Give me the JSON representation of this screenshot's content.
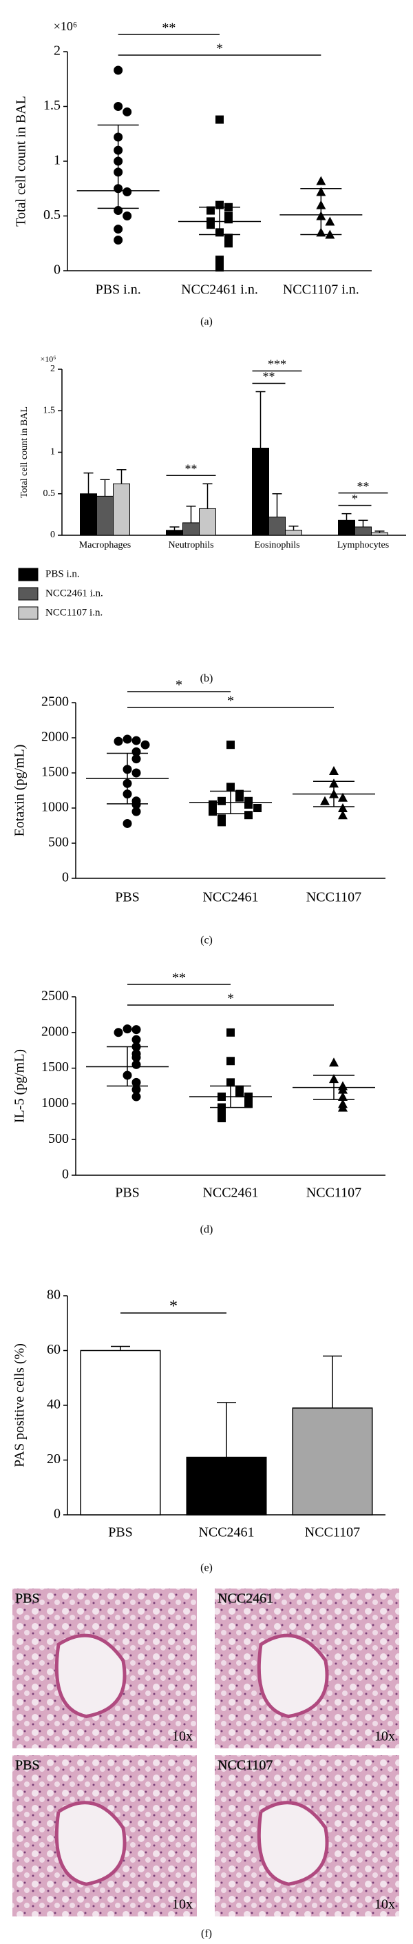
{
  "chart_data": [
    {
      "type": "dotplot",
      "caption": "(a)",
      "ylabel": "Total cell count in BAL",
      "y_multiplier": "×10⁶",
      "color": "#000000",
      "categories": [
        "PBS i.n.",
        "NCC2461 i.n.",
        "NCC1107 i.n."
      ],
      "ylim": [
        0,
        2
      ],
      "yticks": [
        0,
        0.5,
        1,
        1.5,
        2
      ],
      "groups": [
        {
          "marker": "circle",
          "values": [
            1.83,
            1.5,
            1.45,
            1.22,
            1.1,
            1.0,
            0.9,
            0.75,
            0.72,
            0.55,
            0.5,
            0.38,
            0.28
          ],
          "center": 0.73,
          "range": [
            0.57,
            1.33
          ]
        },
        {
          "marker": "square",
          "values": [
            1.38,
            0.6,
            0.58,
            0.55,
            0.5,
            0.47,
            0.45,
            0.42,
            0.35,
            0.3,
            0.25,
            0.1,
            0.03
          ],
          "center": 0.45,
          "range": [
            0.33,
            0.58
          ]
        },
        {
          "marker": "triangle",
          "values": [
            0.82,
            0.72,
            0.6,
            0.5,
            0.45,
            0.35,
            0.33
          ],
          "center": 0.51,
          "range": [
            0.33,
            0.75
          ]
        }
      ],
      "annotations": [
        {
          "label": "**",
          "from": 0,
          "to": 1
        },
        {
          "label": "*",
          "from": 0,
          "to": 2
        }
      ]
    },
    {
      "type": "bar",
      "caption": "(b)",
      "ylabel": "Total cell count in BAL",
      "y_multiplier": "×10⁶",
      "legend": "bottom-left",
      "categories": [
        "Macrophages",
        "Neutrophils",
        "Eosinophils",
        "Lymphocytes"
      ],
      "ylim": [
        0,
        2
      ],
      "yticks": [
        0,
        0.5,
        1,
        1.5,
        2
      ],
      "series": [
        {
          "name": "PBS i.n.",
          "color": "#000000",
          "values": [
            0.5,
            0.06,
            1.05,
            0.18
          ],
          "errors": [
            0.25,
            0.04,
            0.68,
            0.08
          ]
        },
        {
          "name": "NCC2461 i.n.",
          "color": "#595959",
          "values": [
            0.47,
            0.15,
            0.22,
            0.1
          ],
          "errors": [
            0.2,
            0.2,
            0.28,
            0.08
          ]
        },
        {
          "name": "NCC1107 i.n.",
          "color": "#c8c8c8",
          "values": [
            0.62,
            0.32,
            0.06,
            0.03
          ],
          "errors": [
            0.17,
            0.3,
            0.05,
            0.02
          ]
        }
      ],
      "annotations": [
        {
          "label": "**",
          "category": 1,
          "from": 0,
          "to": 2
        },
        {
          "label": "**",
          "category": 2,
          "from": 0,
          "to": 1
        },
        {
          "label": "***",
          "category": 2,
          "from": 0,
          "to": 2
        },
        {
          "label": "*",
          "category": 3,
          "from": 0,
          "to": 1
        },
        {
          "label": "**",
          "category": 3,
          "from": 0,
          "to": 2
        }
      ]
    },
    {
      "type": "dotplot",
      "caption": "(c)",
      "ylabel": "Eotaxin (pg/mL)",
      "color": "#000000",
      "categories": [
        "PBS",
        "NCC2461",
        "NCC1107"
      ],
      "ylim": [
        0,
        2500
      ],
      "yticks": [
        0,
        500,
        1000,
        1500,
        2000,
        2500
      ],
      "groups": [
        {
          "marker": "circle",
          "values": [
            1980,
            1960,
            1950,
            1900,
            1800,
            1700,
            1550,
            1500,
            1350,
            1200,
            1100,
            1050,
            950,
            780
          ],
          "center": 1420,
          "range": [
            1060,
            1780
          ]
        },
        {
          "marker": "square",
          "values": [
            1900,
            1300,
            1200,
            1150,
            1100,
            1100,
            1050,
            1050,
            1000,
            1000,
            950,
            900,
            850,
            800
          ],
          "center": 1080,
          "range": [
            920,
            1240
          ]
        },
        {
          "marker": "triangle",
          "values": [
            1530,
            1350,
            1200,
            1150,
            1100,
            1000,
            900
          ],
          "center": 1200,
          "range": [
            1020,
            1380
          ]
        }
      ],
      "annotations": [
        {
          "label": "*",
          "from": 0,
          "to": 1
        },
        {
          "label": "*",
          "from": 0,
          "to": 2
        }
      ]
    },
    {
      "type": "dotplot",
      "caption": "(d)",
      "ylabel": "IL-5 (pg/mL)",
      "color": "#000000",
      "categories": [
        "PBS",
        "NCC2461",
        "NCC1107"
      ],
      "ylim": [
        0,
        2500
      ],
      "yticks": [
        0,
        500,
        1000,
        1500,
        2000,
        2500
      ],
      "groups": [
        {
          "marker": "circle",
          "values": [
            2050,
            2040,
            2000,
            1900,
            1800,
            1700,
            1650,
            1550,
            1400,
            1300,
            1200,
            1100
          ],
          "center": 1520,
          "range": [
            1250,
            1800
          ]
        },
        {
          "marker": "square",
          "values": [
            2000,
            1600,
            1300,
            1200,
            1150,
            1100,
            1100,
            1050,
            1000,
            950,
            900,
            850,
            800
          ],
          "center": 1100,
          "range": [
            950,
            1250
          ]
        },
        {
          "marker": "triangle",
          "values": [
            1580,
            1350,
            1250,
            1200,
            1100,
            1000,
            950
          ],
          "center": 1230,
          "range": [
            1060,
            1400
          ]
        }
      ],
      "annotations": [
        {
          "label": "**",
          "from": 0,
          "to": 1
        },
        {
          "label": "*",
          "from": 0,
          "to": 2
        }
      ]
    },
    {
      "type": "bar",
      "caption": "(e)",
      "ylabel": "PAS positive cells (%)",
      "categories": [
        "PBS",
        "NCC2461",
        "NCC1107"
      ],
      "ylim": [
        0,
        80
      ],
      "yticks": [
        0,
        20,
        40,
        60,
        80
      ],
      "values": [
        60,
        21,
        39
      ],
      "errors": [
        1.5,
        20,
        19
      ],
      "colors": [
        "#ffffff",
        "#000000",
        "#a6a6a6"
      ],
      "annotations": [
        {
          "label": "*",
          "from": 0,
          "to": 1
        }
      ]
    }
  ],
  "figure_f": {
    "caption": "(f)",
    "panels": [
      {
        "label": "PBS",
        "magnification": "10x"
      },
      {
        "label": "NCC2461",
        "magnification": "10x"
      },
      {
        "label": "PBS",
        "magnification": "10x"
      },
      {
        "label": "NCC1107",
        "magnification": "10x"
      }
    ]
  }
}
